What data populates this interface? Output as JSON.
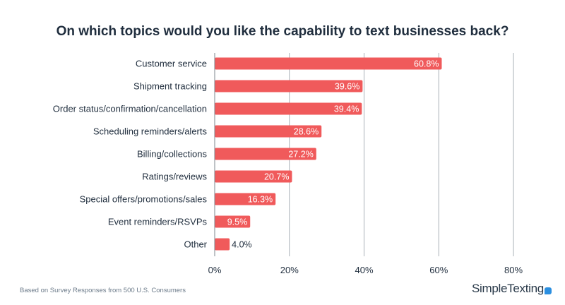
{
  "chart_data": {
    "type": "bar",
    "orientation": "horizontal",
    "title": "On which topics would you like the capability to text businesses back?",
    "categories": [
      "Customer service",
      "Shipment tracking",
      "Order status/confirmation/cancellation",
      "Scheduling reminders/alerts",
      "Billing/collections",
      "Ratings/reviews",
      "Special offers/promotions/sales",
      "Event reminders/RSVPs",
      "Other"
    ],
    "values": [
      60.8,
      39.6,
      39.4,
      28.6,
      27.2,
      20.7,
      16.3,
      9.5,
      4.0
    ],
    "value_labels": [
      "60.8%",
      "39.6%",
      "39.4%",
      "28.6%",
      "27.2%",
      "20.7%",
      "16.3%",
      "9.5%",
      "4.0%"
    ],
    "xlim": [
      0,
      80
    ],
    "xticks": [
      0,
      20,
      40,
      60,
      80
    ],
    "xtick_labels": [
      "0%",
      "20%",
      "40%",
      "60%",
      "80%"
    ],
    "grid": "vertical",
    "bar_color": "#f05a5b"
  },
  "footnote": "Based on Survey Responses from 500 U.S. Consumers",
  "brand": "SimpleTexting",
  "brand_icon": "speech-bubble-icon"
}
